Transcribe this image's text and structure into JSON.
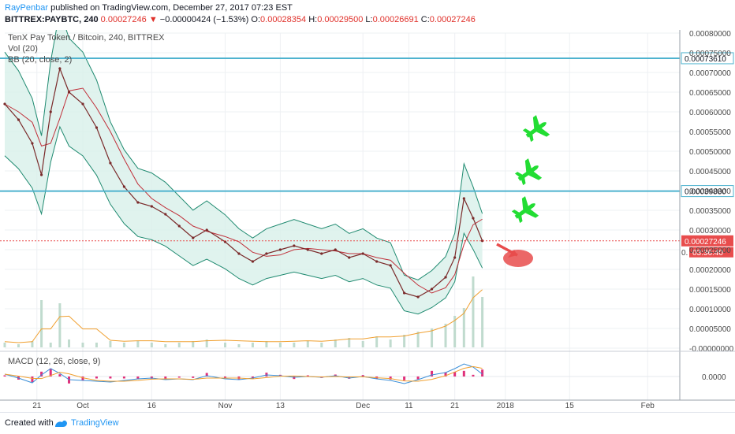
{
  "header": {
    "author": "RayPenbar",
    "published_text": "published on TradingView.com, December 27, 2017 07:23 EST",
    "symbol": "BITTREX:PAYBTC, 240",
    "last": "0.00027246",
    "change_arrow": "▼",
    "change": "−0.00000424 (−1.53%)",
    "o_label": "O:",
    "o_value": "0.00028354",
    "h_label": "H:",
    "h_value": "0.00029500",
    "l_label": "L:",
    "l_value": "0.00026691",
    "c_label": "C:",
    "c_value": "0.00027246"
  },
  "legend": {
    "title": "TenX Pay Token / Bitcoin, 240, BITTREX",
    "vol": "Vol (20)",
    "bb": "BB (20, close, 2)",
    "macd": "MACD (12, 26, close, 9)"
  },
  "footer": {
    "created": "Created with",
    "brand": "TradingView"
  },
  "colors": {
    "price_line": "#c0303a",
    "band": "#1f8a70",
    "band_fill": "#d8f0ea",
    "hline": "#4fb3cf",
    "last_price": "#e84c4c",
    "plane": "#22dd33",
    "arrow": "#e84c4c",
    "macd_line": "#3b8fd8",
    "signal_line": "#f0a030",
    "histogram": "#e0307a"
  },
  "icons": [
    "airplane-icon",
    "airplane-icon",
    "airplane-icon",
    "down-arrow-icon",
    "tradingview-logo-icon"
  ],
  "chart_data": {
    "type": "line",
    "title": "TenX Pay Token / Bitcoin, 240, BITTREX",
    "x": [
      "2017-09-14",
      "2017-09-17",
      "2017-09-20",
      "2017-09-22",
      "2017-09-24",
      "2017-09-26",
      "2017-09-28",
      "2017-10-01",
      "2017-10-04",
      "2017-10-07",
      "2017-10-10",
      "2017-10-13",
      "2017-10-16",
      "2017-10-19",
      "2017-10-22",
      "2017-10-25",
      "2017-10-28",
      "2017-11-01",
      "2017-11-04",
      "2017-11-07",
      "2017-11-10",
      "2017-11-13",
      "2017-11-16",
      "2017-11-19",
      "2017-11-22",
      "2017-11-25",
      "2017-11-28",
      "2017-12-01",
      "2017-12-04",
      "2017-12-07",
      "2017-12-10",
      "2017-12-13",
      "2017-12-16",
      "2017-12-19",
      "2017-12-21",
      "2017-12-23",
      "2017-12-25",
      "2017-12-27"
    ],
    "series": [
      {
        "values": [
          0.00062,
          0.00058,
          0.00052,
          0.00044,
          0.0006,
          0.00071,
          0.00065,
          0.00062,
          0.00056,
          0.00047,
          0.00041,
          0.00037,
          0.00036,
          0.00034,
          0.00031,
          0.00028,
          0.0003,
          0.00027,
          0.00024,
          0.00022,
          0.00024,
          0.00025,
          0.00026,
          0.00025,
          0.00024,
          0.00025,
          0.00023,
          0.00024,
          0.00022,
          0.00021,
          0.00014,
          0.00013,
          0.00015,
          0.00018,
          0.00023,
          0.00038,
          0.00033,
          0.00027246
        ]
      }
    ],
    "ylim": [
      -1e-08,
      0.0008
    ],
    "y_ticks": [
      "0.00080000",
      "0.00075000",
      "0.00070000",
      "0.00065000",
      "0.00060000",
      "0.00055000",
      "0.00050000",
      "0.00045000",
      "0.00040000",
      "0.00035000",
      "0.00030000",
      "0.00025000",
      "0.00020000",
      "0.00015000",
      "0.00010000",
      "0.00005000",
      "-0.00000000"
    ],
    "x_tick_labels": [
      "21",
      "Oct",
      "16",
      "Nov",
      "13",
      "Dec",
      "11",
      "21",
      "2018",
      "15",
      "Feb"
    ],
    "price_markers": [
      {
        "label": "0.00073610",
        "value": 0.0007361
      },
      {
        "label": "0.00039880",
        "value": 0.0003988
      }
    ],
    "last_price": {
      "label": "0.00027246",
      "value": 0.00027246
    },
    "countdown": "03:36:40",
    "partial_tick": "0.",
    "macd_tick": "0.0000",
    "volume": [
      0.3,
      0.2,
      0.4,
      3.0,
      0.3,
      2.8,
      0.5,
      0.3,
      0.3,
      0.4,
      0.3,
      0.4,
      0.3,
      0.2,
      0.3,
      0.4,
      0.5,
      0.3,
      0.2,
      0.3,
      0.4,
      0.3,
      0.3,
      0.4,
      0.3,
      0.5,
      0.6,
      0.4,
      0.7,
      0.5,
      0.8,
      1.0,
      1.2,
      1.5,
      2.0,
      2.5,
      4.5,
      3.2
    ],
    "macd": [
      0.3,
      -0.2,
      -0.8,
      0.2,
      1.0,
      0.4,
      -0.4,
      -0.5,
      -0.6,
      -0.7,
      -0.5,
      -0.3,
      -0.2,
      -0.4,
      -0.3,
      -0.4,
      0.1,
      -0.3,
      -0.4,
      -0.2,
      0.2,
      0.1,
      -0.1,
      0.0,
      -0.1,
      0.1,
      -0.2,
      0.0,
      -0.3,
      -0.5,
      -0.9,
      -0.4,
      0.2,
      0.5,
      1.0,
      1.6,
      1.2,
      0.3
    ]
  }
}
